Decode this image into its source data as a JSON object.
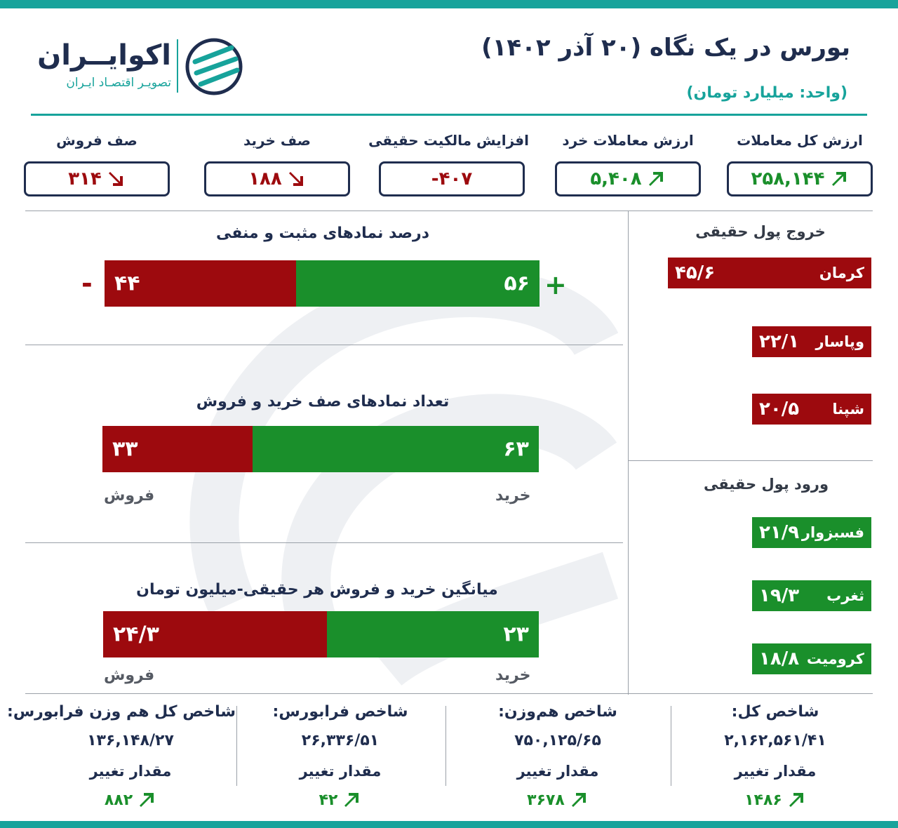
{
  "header": {
    "title": "بورس در یک نگاه (۲۰ آذر ۱۴۰۲)",
    "unit": "(واحد: میلیارد تومان)",
    "logo_name": "اکوایــران",
    "logo_subtitle": "تصویـر اقتصـاد ایـران"
  },
  "stats": [
    {
      "label": "ارزش کل معاملات",
      "value": "۲۵۸,۱۴۴",
      "trend": "up"
    },
    {
      "label": "ارزش معاملات خرد",
      "value": "۵,۴۰۸",
      "trend": "up"
    },
    {
      "label": "افزایش مالکیت حقیقی",
      "value": "-۴۰۷",
      "trend": "none"
    },
    {
      "label": "صف خرید",
      "value": "۱۸۸",
      "trend": "down"
    },
    {
      "label": "صف فروش",
      "value": "۳۱۴",
      "trend": "down"
    }
  ],
  "sections": {
    "positive_negative": {
      "title": "درصد نمادهای مثبت و منفی",
      "positive": 56,
      "negative": 44,
      "positive_label": "۵۶",
      "negative_label": "۴۴",
      "plus_sign": "+",
      "minus_sign": "-"
    },
    "queues": {
      "title": "تعداد نمادهای صف خرید و فروش",
      "buy": 63,
      "sell": 33,
      "buy_label": "۶۳",
      "sell_label": "۳۳",
      "buy_text": "خرید",
      "sell_text": "فروش"
    },
    "avg_trade": {
      "title": "میانگین خرید و فروش هر حقیقی-میلیون تومان",
      "buy": 23,
      "sell": 24.3,
      "buy_label": "۲۳",
      "sell_label": "۲۴/۳",
      "buy_text": "خرید",
      "sell_text": "فروش"
    }
  },
  "outflow": {
    "title": "خروج پول حقیقی",
    "items": [
      {
        "name": "کرمان",
        "value": 45.6,
        "label": "۴۵/۶"
      },
      {
        "name": "وپاسار",
        "value": 22.1,
        "label": "۲۲/۱"
      },
      {
        "name": "شپنا",
        "value": 20.5,
        "label": "۲۰/۵"
      }
    ]
  },
  "inflow": {
    "title": "ورود پول حقیقی",
    "items": [
      {
        "name": "فسبزوار",
        "value": 21.9,
        "label": "۲۱/۹"
      },
      {
        "name": "ثغرب",
        "value": 19.3,
        "label": "۱۹/۳"
      },
      {
        "name": "کرومیت",
        "value": 18.8,
        "label": "۱۸/۸"
      }
    ]
  },
  "indices": [
    {
      "name": "شاخص کل:",
      "value": "۲,۱۶۲,۵۶۱/۴۱",
      "change_label": "مقدار تغییر",
      "change": "۱۴۸۶"
    },
    {
      "name": "شاخص هم‌وزن:",
      "value": "۷۵۰,۱۲۵/۶۵",
      "change_label": "مقدار تغییر",
      "change": "۳۶۷۸"
    },
    {
      "name": "شاخص فرابورس:",
      "value": "۲۶,۳۳۶/۵۱",
      "change_label": "مقدار تغییر",
      "change": "۴۲"
    },
    {
      "name": "شاخص کل هم وزن فرابورس:",
      "value": "۱۳۶,۱۴۸/۲۷",
      "change_label": "مقدار تغییر",
      "change": "۸۸۲"
    }
  ],
  "colors": {
    "teal": "#17a39b",
    "navy": "#1f2d4e",
    "red": "#9d0a0e",
    "green": "#1a8f2b"
  },
  "chart_data": [
    {
      "type": "bar",
      "title": "درصد نمادهای مثبت و منفی",
      "categories": [
        "+",
        "-"
      ],
      "values": [
        56,
        44
      ]
    },
    {
      "type": "bar",
      "title": "تعداد نمادهای صف خرید و فروش",
      "categories": [
        "خرید",
        "فروش"
      ],
      "values": [
        63,
        33
      ]
    },
    {
      "type": "bar",
      "title": "میانگین خرید و فروش هر حقیقی-میلیون تومان",
      "categories": [
        "خرید",
        "فروش"
      ],
      "values": [
        23,
        24.3
      ]
    },
    {
      "type": "bar",
      "title": "خروج پول حقیقی",
      "categories": [
        "کرمان",
        "وپاسار",
        "شپنا"
      ],
      "values": [
        45.6,
        22.1,
        20.5
      ]
    },
    {
      "type": "bar",
      "title": "ورود پول حقیقی",
      "categories": [
        "فسبزوار",
        "ثغرب",
        "کرومیت"
      ],
      "values": [
        21.9,
        19.3,
        18.8
      ]
    }
  ]
}
